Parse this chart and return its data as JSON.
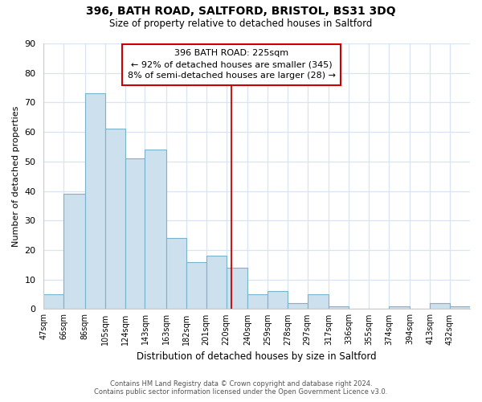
{
  "title": "396, BATH ROAD, SALTFORD, BRISTOL, BS31 3DQ",
  "subtitle": "Size of property relative to detached houses in Saltford",
  "xlabel": "Distribution of detached houses by size in Saltford",
  "ylabel": "Number of detached properties",
  "bin_labels": [
    "47sqm",
    "66sqm",
    "86sqm",
    "105sqm",
    "124sqm",
    "143sqm",
    "163sqm",
    "182sqm",
    "201sqm",
    "220sqm",
    "240sqm",
    "259sqm",
    "278sqm",
    "297sqm",
    "317sqm",
    "336sqm",
    "355sqm",
    "374sqm",
    "394sqm",
    "413sqm",
    "432sqm"
  ],
  "bin_edges": [
    47,
    66,
    86,
    105,
    124,
    143,
    163,
    182,
    201,
    220,
    240,
    259,
    278,
    297,
    317,
    336,
    355,
    374,
    394,
    413,
    432,
    451
  ],
  "counts": [
    5,
    39,
    73,
    61,
    51,
    54,
    24,
    16,
    18,
    14,
    5,
    6,
    2,
    5,
    1,
    0,
    0,
    1,
    0,
    2,
    1
  ],
  "bar_color": "#cde0ee",
  "bar_edge_color": "#7ab3cc",
  "property_line_x": 225,
  "property_line_color": "#cc0000",
  "annotation_text": "396 BATH ROAD: 225sqm\n← 92% of detached houses are smaller (345)\n8% of semi-detached houses are larger (28) →",
  "annotation_box_edge_color": "#cc0000",
  "annotation_box_face_color": "#ffffff",
  "ylim": [
    0,
    90
  ],
  "yticks": [
    0,
    10,
    20,
    30,
    40,
    50,
    60,
    70,
    80,
    90
  ],
  "footer_line1": "Contains HM Land Registry data © Crown copyright and database right 2024.",
  "footer_line2": "Contains public sector information licensed under the Open Government Licence v3.0.",
  "background_color": "#ffffff",
  "plot_bg_color": "#ffffff",
  "grid_color": "#d8e4f0"
}
